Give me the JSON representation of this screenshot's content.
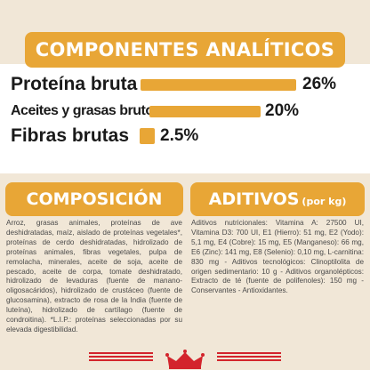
{
  "header": {
    "title": "COMPONENTES ANALÍTICOS"
  },
  "analytics": {
    "rows": [
      {
        "label": "Proteína bruta",
        "percent_text": "26%",
        "value": 26
      },
      {
        "label": "Aceites y grasas brutos",
        "percent_text": "20%",
        "value": 20
      },
      {
        "label": "Fibras brutas",
        "percent_text": "2.5%",
        "value": 2.5
      }
    ]
  },
  "composition": {
    "title": "COMPOSICIÓN",
    "text": "Arroz, grasas animales, proteínas de ave deshidratadas, maíz, aislado de proteínas vegetales*, proteínas de cerdo deshidratadas, hidrolizado de proteínas animales, fibras vegetales, pulpa de remolacha, minerales, aceite de soja, aceite de pescado, aceite de corpa, tomate deshidratado, hidrolizado de levaduras (fuente de manano-oligosacáridos), hidrolizado de crustáceo (fuente de glucosamina), extracto de rosa de la India (fuente de luteína), hidrolizado de cartílago (fuente de condroitina). *L.I.P.: proteínas seleccionadas por su elevada digestibilidad."
  },
  "additives": {
    "title": "ADITIVOS",
    "title_suffix": "(por kg)",
    "text": "Aditivos nutricionales: Vitamina A: 27500 UI, Vitamina D3: 700 UI, E1 (Hierro): 51 mg, E2 (Yodo): 5,1 mg, E4 (Cobre): 15 mg, E5 (Manganeso): 66 mg, E6 (Zinc): 141 mg, E8 (Selenio): 0,10 mg, L-carnitina: 830 mg - Aditivos tecnológicos: Clinoptilolita de origen sedimentario: 10 g - Aditivos organolépticos: Extracto de té (fuente de polifenoles): 150 mg - Conservantes - Antioxidantes."
  },
  "colors": {
    "accent": "#e8a636",
    "band": "#f1e7d7",
    "brand_red": "#d3242c",
    "text_dark": "#1a1a1a",
    "text_body": "#4a4a4a"
  },
  "icons": {
    "logo": "crown-logo-icon"
  }
}
